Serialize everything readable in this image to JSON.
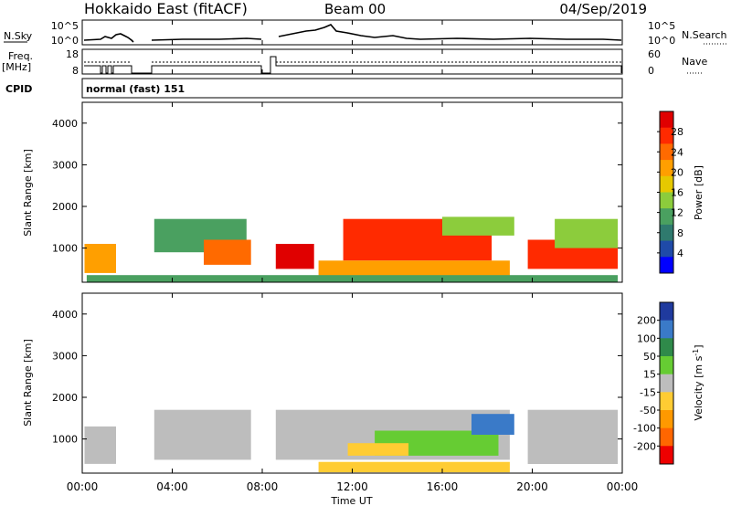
{
  "header": {
    "station": "Hokkaido East (fitACF)",
    "beam": "Beam 00",
    "date": "04/Sep/2019"
  },
  "side_labels": {
    "nsky": "N.Sky",
    "freq": "Freq.",
    "freq_unit": "[MHz]",
    "cpid": "CPID",
    "nsearch": "N.Search",
    "nave": "Nave"
  },
  "cpid_text": "normal (fast) 151",
  "xaxis": {
    "label": "Time UT",
    "ticks": [
      "00:00",
      "04:00",
      "08:00",
      "12:00",
      "16:00",
      "20:00",
      "00:00"
    ],
    "range_hours": [
      0,
      24
    ]
  },
  "nsky_axis": {
    "left_ticks": [
      "10^5",
      "10^0"
    ],
    "right_ticks": [
      "10^5",
      "10^0"
    ]
  },
  "freq_axis": {
    "left_ticks": [
      "18",
      "8"
    ],
    "right_ticks": [
      "60",
      "0"
    ]
  },
  "chart_data": [
    {
      "type": "heatmap",
      "name": "power",
      "ylabel": "Slant Range [km]",
      "yticks": [
        "1000",
        "2000",
        "3000",
        "4000"
      ],
      "ylim": [
        180,
        4500
      ],
      "colorbar_label": "Power [dB]",
      "colorbar_ticks": [
        "4",
        "8",
        "12",
        "16",
        "20",
        "24",
        "28"
      ],
      "colorbar_range": [
        0,
        32
      ],
      "colors": [
        "#0000ff",
        "#1f4aa8",
        "#2f7a6e",
        "#4aa060",
        "#8ccc3c",
        "#e6c800",
        "#ff9f00",
        "#ff6a00",
        "#ff2a00",
        "#e00000"
      ],
      "regions": [
        {
          "t0": 0.1,
          "t1": 1.5,
          "r0": 400,
          "r1": 1100,
          "value": 22
        },
        {
          "t0": 3.2,
          "t1": 7.3,
          "r0": 900,
          "r1": 1700,
          "value": 12
        },
        {
          "t0": 5.4,
          "t1": 7.5,
          "r0": 600,
          "r1": 1200,
          "value": 24
        },
        {
          "t0": 8.6,
          "t1": 10.3,
          "r0": 500,
          "r1": 1100,
          "value": 29
        },
        {
          "t0": 11.6,
          "t1": 18.2,
          "r0": 700,
          "r1": 1700,
          "value": 28
        },
        {
          "t0": 10.5,
          "t1": 19.0,
          "r0": 300,
          "r1": 700,
          "value": 22
        },
        {
          "t0": 16.0,
          "t1": 19.2,
          "r0": 1300,
          "r1": 1750,
          "value": 14
        },
        {
          "t0": 19.8,
          "t1": 23.8,
          "r0": 500,
          "r1": 1200,
          "value": 26
        },
        {
          "t0": 21.0,
          "t1": 23.8,
          "r0": 1000,
          "r1": 1700,
          "value": 14
        },
        {
          "t0": 0.2,
          "t1": 23.8,
          "r0": 180,
          "r1": 350,
          "value": 10
        }
      ]
    },
    {
      "type": "heatmap",
      "name": "velocity",
      "ylabel": "Slant Range [km]",
      "yticks": [
        "1000",
        "2000",
        "3000",
        "4000"
      ],
      "ylim": [
        180,
        4500
      ],
      "colorbar_label": "Velocity [m s",
      "colorbar_unit_exp": "-1",
      "colorbar_unit_close": "]",
      "colorbar_ticks": [
        "200",
        "100",
        "50",
        "15",
        "-15",
        "-50",
        "-100",
        "-200"
      ],
      "colorbar_range": [
        -250,
        250
      ],
      "colors": [
        "#1f3a9e",
        "#3a7ac8",
        "#2f8a4a",
        "#66cc33",
        "#bdbdbd",
        "#ffcc33",
        "#ff9900",
        "#ff6600",
        "#ee0000"
      ],
      "regions": [
        {
          "t0": 0.1,
          "t1": 1.5,
          "r0": 400,
          "r1": 1300,
          "value": 0
        },
        {
          "t0": 3.2,
          "t1": 7.5,
          "r0": 500,
          "r1": 1700,
          "value": 0
        },
        {
          "t0": 8.6,
          "t1": 19.0,
          "r0": 500,
          "r1": 1700,
          "value": 0
        },
        {
          "t0": 13.0,
          "t1": 18.5,
          "r0": 600,
          "r1": 1200,
          "value": 40
        },
        {
          "t0": 17.3,
          "t1": 19.2,
          "r0": 1100,
          "r1": 1600,
          "value": 150
        },
        {
          "t0": 11.8,
          "t1": 14.5,
          "r0": 600,
          "r1": 900,
          "value": -40
        },
        {
          "t0": 19.8,
          "t1": 23.8,
          "r0": 400,
          "r1": 1700,
          "value": 0
        },
        {
          "t0": 10.5,
          "t1": 19.0,
          "r0": 200,
          "r1": 450,
          "value": -70
        }
      ]
    }
  ]
}
